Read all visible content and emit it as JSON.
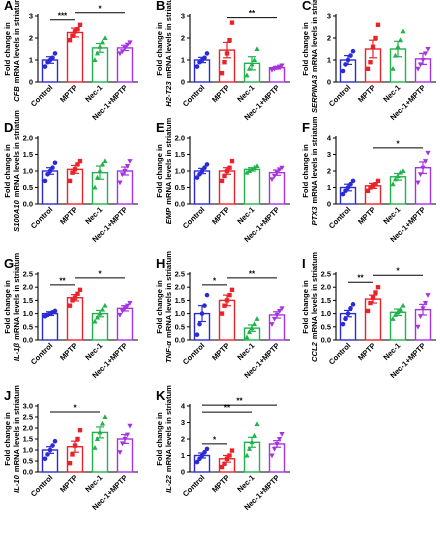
{
  "figure": {
    "groups": [
      "Control",
      "MPTP",
      "Nec-1",
      "Nec-1+MPTP"
    ],
    "colors": {
      "Control": "#2b2bd6",
      "MPTP": "#e8232a",
      "Nec-1": "#21b24b",
      "Nec-1+MPTP": "#a633e0",
      "axis": "#000000"
    },
    "markers": {
      "Control": "circle",
      "MPTP": "square",
      "Nec-1": "triangle-up",
      "Nec-1+MPTP": "triangle-down"
    }
  },
  "chart_data": [
    {
      "type": "bar",
      "panel": "A",
      "gene": "CFB",
      "title": "",
      "ylabel_line1": "Fold change in",
      "ylabel_line2": "mRNA levels in striatum",
      "categories": [
        "Control",
        "MPTP",
        "Nec-1",
        "Nec-1+MPTP"
      ],
      "yticks": [
        "0",
        "1",
        "2",
        "3"
      ],
      "ylim": [
        0,
        3
      ],
      "values": [
        1.0,
        2.25,
        1.55,
        1.55
      ],
      "errors": [
        0.15,
        0.2,
        0.2,
        0.12
      ],
      "points": [
        [
          0.7,
          0.9,
          1.0,
          1.1,
          1.3
        ],
        [
          1.9,
          2.1,
          2.3,
          2.4,
          2.6
        ],
        [
          1.0,
          1.3,
          1.6,
          1.8,
          2.0
        ],
        [
          1.3,
          1.4,
          1.55,
          1.7,
          1.8
        ]
      ],
      "significance": [
        {
          "from": 0,
          "to": 1,
          "label": "***"
        },
        {
          "from": 1,
          "to": 3,
          "label": "*"
        }
      ]
    },
    {
      "type": "bar",
      "panel": "B",
      "gene": "H2-T23",
      "title": "",
      "ylabel_line1": "Fold change in",
      "ylabel_line2": "mRNA levels in striatum",
      "categories": [
        "Control",
        "MPTP",
        "Nec-1",
        "Nec-1+MPTP"
      ],
      "yticks": [
        "0",
        "1",
        "2",
        "3"
      ],
      "ylim": [
        0,
        3
      ],
      "values": [
        1.0,
        1.45,
        0.85,
        0.65
      ],
      "errors": [
        0.12,
        0.35,
        0.3,
        0.06
      ],
      "points": [
        [
          0.7,
          0.9,
          1.0,
          1.1,
          1.3
        ],
        [
          0.4,
          0.9,
          1.3,
          1.9,
          2.7
        ],
        [
          0.3,
          0.6,
          0.8,
          1.0,
          1.5
        ],
        [
          0.55,
          0.6,
          0.65,
          0.7,
          0.75
        ]
      ],
      "significance": [
        {
          "from": 1,
          "to": 3,
          "label": "**"
        }
      ]
    },
    {
      "type": "bar",
      "panel": "C",
      "gene": "SERPINA3",
      "title": "",
      "ylabel_line1": "Fold change in",
      "ylabel_line2": "mRNA levels in striatum",
      "categories": [
        "Control",
        "MPTP",
        "Nec-1",
        "Nec-1+MPTP"
      ],
      "yticks": [
        "0",
        "1",
        "2",
        "3"
      ],
      "ylim": [
        0,
        3
      ],
      "values": [
        1.0,
        1.5,
        1.5,
        1.05
      ],
      "errors": [
        0.2,
        0.4,
        0.35,
        0.25
      ],
      "points": [
        [
          0.5,
          0.8,
          1.0,
          1.2,
          1.4
        ],
        [
          0.6,
          0.9,
          1.6,
          2.0,
          2.6
        ],
        [
          0.6,
          1.2,
          1.6,
          1.9,
          2.3
        ],
        [
          0.6,
          0.8,
          1.0,
          1.3,
          1.5
        ]
      ],
      "significance": []
    },
    {
      "type": "bar",
      "panel": "D",
      "gene": "S100A10",
      "title": "",
      "ylabel_line1": "Fold change in",
      "ylabel_line2": "mRNA levels in striatum",
      "categories": [
        "Control",
        "MPTP",
        "Nec-1",
        "Nec-1+MPTP"
      ],
      "yticks": [
        "0.0",
        "0.5",
        "1.0",
        "1.5",
        "2.0"
      ],
      "ylim": [
        0,
        2
      ],
      "values": [
        1.0,
        1.05,
        0.95,
        1.0
      ],
      "errors": [
        0.1,
        0.12,
        0.2,
        0.12
      ],
      "points": [
        [
          0.7,
          0.9,
          1.0,
          1.1,
          1.25
        ],
        [
          0.7,
          0.95,
          1.05,
          1.2,
          1.3
        ],
        [
          0.5,
          0.8,
          1.0,
          1.2,
          1.3
        ],
        [
          0.65,
          0.9,
          1.0,
          1.15,
          1.3
        ]
      ],
      "significance": []
    },
    {
      "type": "bar",
      "panel": "E",
      "gene": "EMP",
      "title": "",
      "ylabel_line1": "Fold change in",
      "ylabel_line2": "mRNA levels in striatum",
      "categories": [
        "Control",
        "MPTP",
        "Nec-1",
        "Nec-1+MPTP"
      ],
      "yticks": [
        "0.0",
        "0.5",
        "1.0",
        "1.5",
        "2.0"
      ],
      "ylim": [
        0,
        2
      ],
      "values": [
        1.0,
        1.0,
        1.05,
        0.95
      ],
      "errors": [
        0.08,
        0.1,
        0.05,
        0.08
      ],
      "points": [
        [
          0.8,
          0.9,
          1.0,
          1.1,
          1.2
        ],
        [
          0.7,
          0.85,
          1.0,
          1.1,
          1.3
        ],
        [
          0.95,
          1.0,
          1.05,
          1.1,
          1.15
        ],
        [
          0.75,
          0.85,
          0.95,
          1.05,
          1.1
        ]
      ],
      "significance": []
    },
    {
      "type": "bar",
      "panel": "F",
      "gene": "PTX3",
      "title": "",
      "ylabel_line1": "Fold change in",
      "ylabel_line2": "mRNA levels in striatum",
      "categories": [
        "Control",
        "MPTP",
        "Nec-1",
        "Nec-1+MPTP"
      ],
      "yticks": [
        "0",
        "1",
        "2",
        "3",
        "4"
      ],
      "ylim": [
        0,
        4
      ],
      "values": [
        1.0,
        1.1,
        1.65,
        2.2
      ],
      "errors": [
        0.2,
        0.15,
        0.2,
        0.35
      ],
      "points": [
        [
          0.6,
          0.8,
          1.0,
          1.2,
          1.4
        ],
        [
          0.8,
          1.0,
          1.1,
          1.2,
          1.4
        ],
        [
          1.2,
          1.5,
          1.7,
          1.9,
          2.0
        ],
        [
          1.3,
          1.8,
          2.2,
          2.6,
          3.1
        ]
      ],
      "significance": [
        {
          "from": 1,
          "to": 3,
          "label": "*"
        }
      ]
    },
    {
      "type": "bar",
      "panel": "G",
      "gene": "IL-1β",
      "title": "",
      "ylabel_line1": "Fold change in",
      "ylabel_line2": "mRNA levels in striatum",
      "categories": [
        "Control",
        "MPTP",
        "Nec-1",
        "Nec-1+MPTP"
      ],
      "yticks": [
        "0.0",
        "0.5",
        "1.0",
        "1.5",
        "2.0",
        "2.5"
      ],
      "ylim": [
        0,
        2.5
      ],
      "values": [
        1.0,
        1.6,
        1.0,
        1.2
      ],
      "errors": [
        0.07,
        0.12,
        0.12,
        0.1
      ],
      "points": [
        [
          0.9,
          0.95,
          1.0,
          1.05,
          1.1
        ],
        [
          1.3,
          1.5,
          1.6,
          1.75,
          1.9
        ],
        [
          0.7,
          0.85,
          1.0,
          1.15,
          1.3
        ],
        [
          0.95,
          1.1,
          1.2,
          1.3,
          1.4
        ]
      ],
      "significance": [
        {
          "from": 0,
          "to": 1,
          "label": "**"
        },
        {
          "from": 1,
          "to": 3,
          "label": "*"
        }
      ]
    },
    {
      "type": "bar",
      "panel": "H",
      "gene": "TNF-α",
      "title": "",
      "ylabel_line1": "Fold change in",
      "ylabel_line2": "mRNA levels in striatum",
      "categories": [
        "Control",
        "MPTP",
        "Nec-1",
        "Nec-1+MPTP"
      ],
      "yticks": [
        "0.0",
        "0.5",
        "1.0",
        "1.5",
        "2.0",
        "2.5"
      ],
      "ylim": [
        0,
        2.5
      ],
      "values": [
        1.0,
        1.5,
        0.45,
        0.95
      ],
      "errors": [
        0.3,
        0.2,
        0.12,
        0.12
      ],
      "points": [
        [
          0.2,
          0.6,
          1.0,
          1.3,
          1.7
        ],
        [
          1.0,
          1.3,
          1.5,
          1.7,
          1.9
        ],
        [
          0.1,
          0.3,
          0.45,
          0.6,
          0.8
        ],
        [
          0.6,
          0.8,
          0.95,
          1.1,
          1.2
        ]
      ],
      "significance": [
        {
          "from": 0,
          "to": 1,
          "label": "*"
        },
        {
          "from": 1,
          "to": 3,
          "label": "**"
        }
      ]
    },
    {
      "type": "bar",
      "panel": "I",
      "gene": "CCL2",
      "title": "",
      "ylabel_line1": "Fold change in",
      "ylabel_line2": "mRNA levels in striatum",
      "categories": [
        "Control",
        "MPTP",
        "Nec-1",
        "Nec-1+MPTP"
      ],
      "yticks": [
        "0.0",
        "0.5",
        "1.0",
        "1.5",
        "2.0",
        "2.5"
      ],
      "ylim": [
        0,
        2.5
      ],
      "values": [
        1.0,
        1.55,
        1.05,
        1.15
      ],
      "errors": [
        0.12,
        0.15,
        0.12,
        0.2
      ],
      "points": [
        [
          0.6,
          0.8,
          1.0,
          1.2,
          1.35
        ],
        [
          1.1,
          1.4,
          1.6,
          1.8,
          2.0
        ],
        [
          0.8,
          0.95,
          1.05,
          1.15,
          1.3
        ],
        [
          0.5,
          0.9,
          1.2,
          1.4,
          1.7
        ]
      ],
      "significance": [
        {
          "from": 0,
          "to": 1,
          "label": "**"
        },
        {
          "from": 1,
          "to": 3,
          "label": "*"
        }
      ]
    },
    {
      "type": "bar",
      "panel": "J",
      "gene": "IL-10",
      "title": "",
      "ylabel_line1": "Fold change in",
      "ylabel_line2": "mRNA levels in striatum",
      "categories": [
        "Control",
        "MPTP",
        "Nec-1",
        "Nec-1+MPTP"
      ],
      "yticks": [
        "0.0",
        "0.5",
        "1.0",
        "1.5",
        "2.0",
        "2.5",
        "3.0"
      ],
      "ylim": [
        0,
        3
      ],
      "values": [
        1.0,
        1.15,
        1.8,
        1.5
      ],
      "errors": [
        0.15,
        0.25,
        0.25,
        0.2
      ],
      "points": [
        [
          0.6,
          0.8,
          1.0,
          1.2,
          1.4
        ],
        [
          0.4,
          0.8,
          1.2,
          1.5,
          1.9
        ],
        [
          1.1,
          1.5,
          1.8,
          2.2,
          2.5
        ],
        [
          0.9,
          1.3,
          1.5,
          1.7,
          2.1
        ]
      ],
      "significance": [
        {
          "from": 0,
          "to": 2,
          "label": "*"
        }
      ]
    },
    {
      "type": "bar",
      "panel": "K",
      "gene": "IL-22",
      "title": "",
      "ylabel_line1": "Fold change in",
      "ylabel_line2": "mRNA levels in striatum",
      "categories": [
        "Control",
        "MPTP",
        "Nec-1",
        "Nec-1+MPTP"
      ],
      "yticks": [
        "0",
        "1",
        "2",
        "3",
        "4"
      ],
      "ylim": [
        0,
        4
      ],
      "values": [
        1.0,
        0.8,
        1.8,
        1.7
      ],
      "errors": [
        0.15,
        0.2,
        0.3,
        0.2
      ],
      "points": [
        [
          0.6,
          0.8,
          1.0,
          1.2,
          1.4
        ],
        [
          0.3,
          0.5,
          0.8,
          1.0,
          1.3
        ],
        [
          1.0,
          1.4,
          1.8,
          2.2,
          2.9
        ],
        [
          1.0,
          1.4,
          1.7,
          2.0,
          2.3
        ]
      ],
      "significance": [
        {
          "from": 0,
          "to": 1,
          "label": "*"
        },
        {
          "from": 0,
          "to": 2,
          "label": "**"
        },
        {
          "from": 0,
          "to": 3,
          "label": "**"
        }
      ]
    }
  ]
}
